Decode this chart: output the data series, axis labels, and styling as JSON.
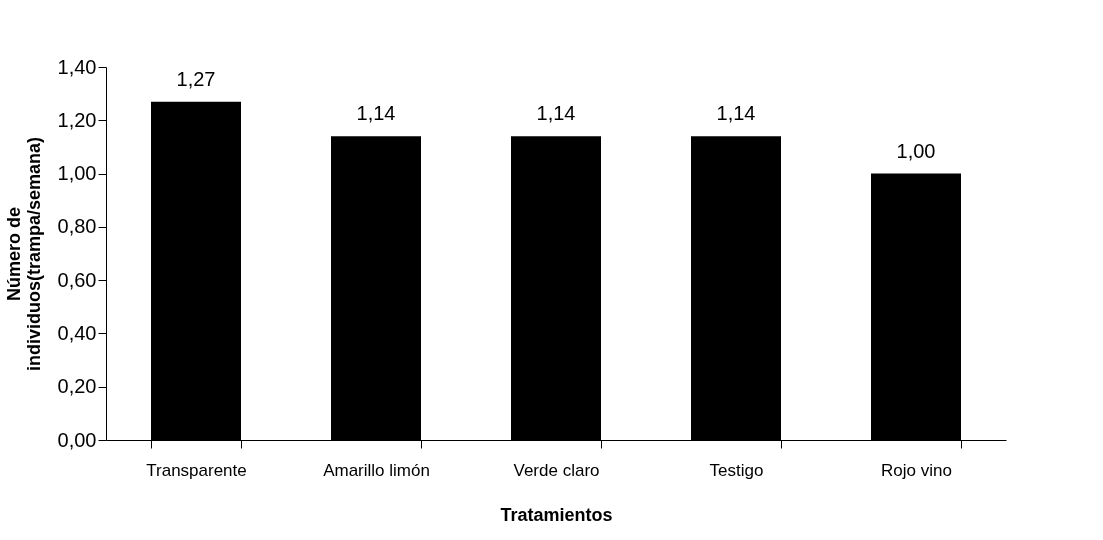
{
  "chart_data": {
    "type": "bar",
    "xlabel": "Tratamientos",
    "ylabel": "Número de\nindividuos(trampa/semana)",
    "categories": [
      "Transparente",
      "Amarillo limón",
      "Verde claro",
      "Testigo",
      "Rojo vino"
    ],
    "values": [
      1.27,
      1.14,
      1.14,
      1.14,
      1.0
    ],
    "value_labels": [
      "1,27",
      "1,14",
      "1,14",
      "1,14",
      "1,00"
    ],
    "color": "#000000",
    "ylim": [
      0,
      1.4
    ],
    "yticks": [
      {
        "value": 0,
        "label": "0,00"
      },
      {
        "value": 0.2,
        "label": "0,20"
      },
      {
        "value": 0.4,
        "label": "0,40"
      },
      {
        "value": 0.6,
        "label": "0,60"
      },
      {
        "value": 0.8,
        "label": "0,80"
      },
      {
        "value": 1.0,
        "label": "1,00"
      },
      {
        "value": 1.2,
        "label": "1,20"
      },
      {
        "value": 1.4,
        "label": "1,40"
      }
    ],
    "grid": false
  }
}
